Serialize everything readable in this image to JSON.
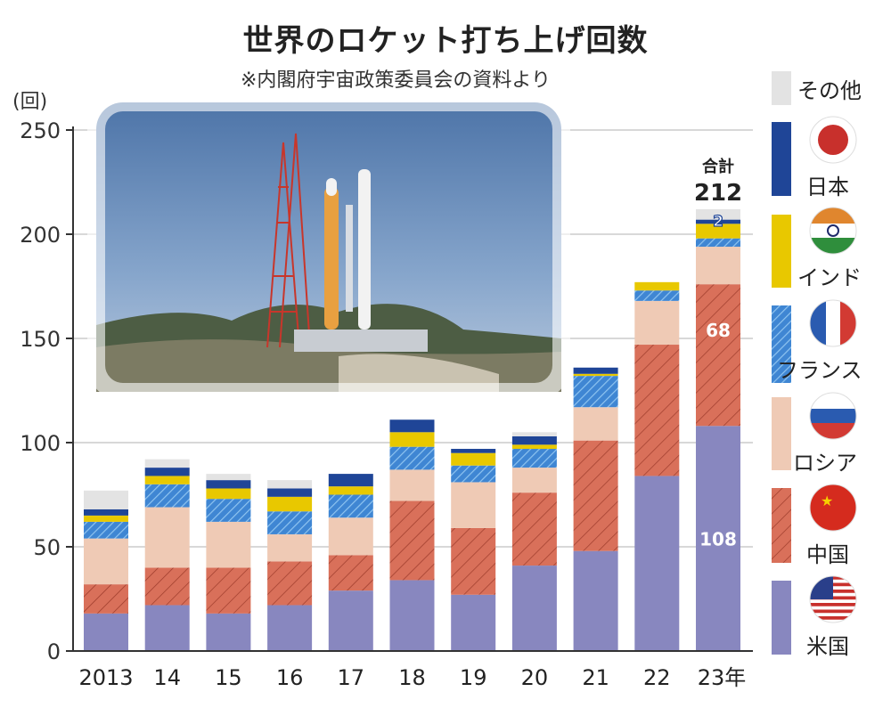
{
  "chart_data": {
    "type": "bar",
    "stacked": true,
    "title": "世界のロケット打ち上げ回数",
    "subtitle": "※内閣府宇宙政策委員会の資料より",
    "ylabel": "(回)",
    "ylim": [
      0,
      250
    ],
    "yticks": [
      0,
      50,
      100,
      150,
      200,
      250
    ],
    "grid": true,
    "legend_placement": "right",
    "categories": [
      "2013",
      "14",
      "15",
      "16",
      "17",
      "18",
      "19",
      "20",
      "21",
      "22",
      "23年"
    ],
    "series": [
      {
        "name": "米国",
        "key": "us",
        "color": "#8887bf",
        "values": [
          18,
          22,
          18,
          22,
          29,
          34,
          27,
          41,
          48,
          84,
          108
        ]
      },
      {
        "name": "中国",
        "key": "cn",
        "color": "#d9705a",
        "values": [
          14,
          18,
          22,
          21,
          17,
          38,
          32,
          35,
          53,
          63,
          68
        ]
      },
      {
        "name": "ロシア",
        "key": "ru",
        "color": "#efcab5",
        "values": [
          22,
          29,
          22,
          13,
          18,
          15,
          22,
          12,
          16,
          21,
          18
        ]
      },
      {
        "name": "フランス",
        "key": "fr",
        "color": "#4a8fd8",
        "values": [
          8,
          11,
          11,
          11,
          11,
          11,
          8,
          9,
          15,
          5,
          4
        ]
      },
      {
        "name": "インド",
        "key": "in",
        "color": "#e8c800",
        "values": [
          3,
          4,
          5,
          7,
          4,
          7,
          6,
          2,
          1,
          4,
          7
        ]
      },
      {
        "name": "日本",
        "key": "jp",
        "color": "#1f4597",
        "values": [
          3,
          4,
          4,
          4,
          6,
          6,
          2,
          4,
          3,
          0,
          2
        ]
      },
      {
        "name": "その他",
        "key": "other",
        "color": "#e3e3e3",
        "values": [
          9,
          4,
          3,
          4,
          0,
          0,
          0,
          2,
          0,
          0,
          5
        ]
      }
    ],
    "annotations": {
      "total_label": "合計",
      "total_value": "212",
      "us_2023": "108",
      "cn_2023": "68",
      "jp_2023": "2"
    }
  }
}
